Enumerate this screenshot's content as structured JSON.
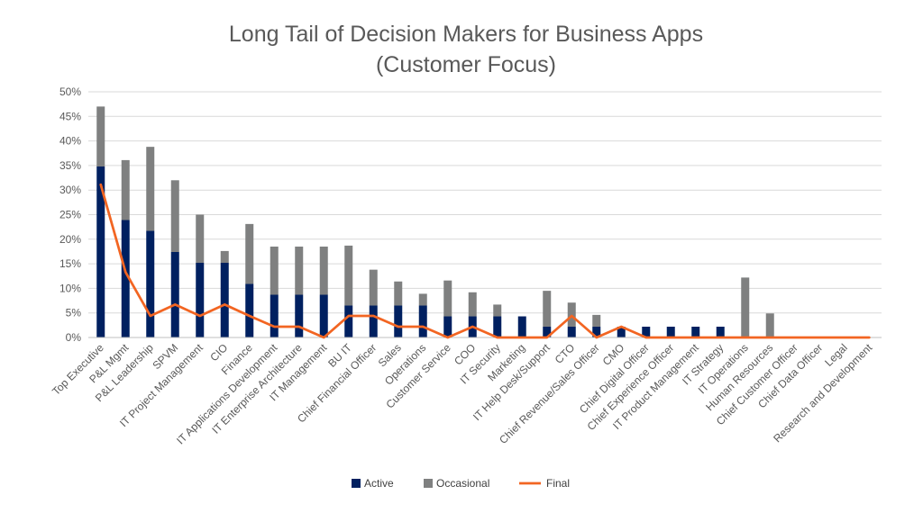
{
  "chart_data": {
    "type": "bar",
    "stacked": true,
    "title_lines": [
      "Long Tail of Decision Makers for Business Apps",
      "(Customer Focus)"
    ],
    "xlabel": "",
    "ylabel": "",
    "ylim": [
      0,
      50
    ],
    "y_ticks": [
      "0%",
      "5%",
      "10%",
      "15%",
      "20%",
      "25%",
      "30%",
      "35%",
      "40%",
      "45%",
      "50%"
    ],
    "y_tick_values": [
      0,
      5,
      10,
      15,
      20,
      25,
      30,
      35,
      40,
      45,
      50
    ],
    "grid": true,
    "legend_position": "bottom",
    "categories": [
      "Top Executive",
      "P&L Mgmt",
      "P&L Leadership",
      "SPVM",
      "IT Project Management",
      "CIO",
      "Finance",
      "IT Applications Development",
      "IT Enterprise Architecture",
      "IT Management",
      "BU IT",
      "Chief Financial Officer",
      "Sales",
      "Operations",
      "Customer Service",
      "COO",
      "IT Security",
      "Marketing",
      "IT Help Desk/Support",
      "CTO",
      "Chief Revenue/Sales Officer",
      "CMO",
      "Chief Digital Officer",
      "Chief Experience Officer",
      "IT Product Management",
      "IT Strategy",
      "IT Operations",
      "Human Resources",
      "Chief Customer Officer",
      "Chief Data Officer",
      "Legal",
      "Research and Development"
    ],
    "series": [
      {
        "name": "Active",
        "kind": "bar",
        "color": "#002060",
        "values": [
          34.8,
          23.9,
          21.7,
          17.4,
          15.2,
          15.2,
          10.9,
          8.7,
          8.7,
          8.7,
          6.5,
          6.5,
          6.5,
          6.5,
          4.3,
          4.3,
          4.3,
          4.3,
          2.2,
          2.2,
          2.2,
          2.2,
          2.2,
          2.2,
          2.2,
          2.2,
          0,
          0,
          0,
          0,
          0,
          0
        ]
      },
      {
        "name": "Occasional",
        "kind": "bar",
        "color": "#7f8080",
        "values": [
          12.2,
          12.2,
          17.1,
          14.6,
          9.8,
          2.4,
          12.2,
          9.8,
          9.8,
          9.8,
          12.2,
          7.3,
          4.9,
          2.4,
          7.3,
          4.9,
          2.4,
          0,
          7.3,
          4.9,
          2.4,
          0,
          0,
          0,
          0,
          0,
          12.2,
          4.9,
          0,
          0,
          0,
          0
        ]
      },
      {
        "name": "Final",
        "kind": "line",
        "color": "#f26522",
        "values": [
          31.1,
          13.3,
          4.4,
          6.7,
          4.4,
          6.7,
          4.4,
          2.2,
          2.2,
          0,
          4.4,
          4.4,
          2.2,
          2.2,
          0,
          2.2,
          0,
          0,
          0,
          4.4,
          0,
          2.2,
          0,
          0,
          0,
          0,
          0,
          0,
          0,
          0,
          0,
          0
        ]
      }
    ]
  }
}
